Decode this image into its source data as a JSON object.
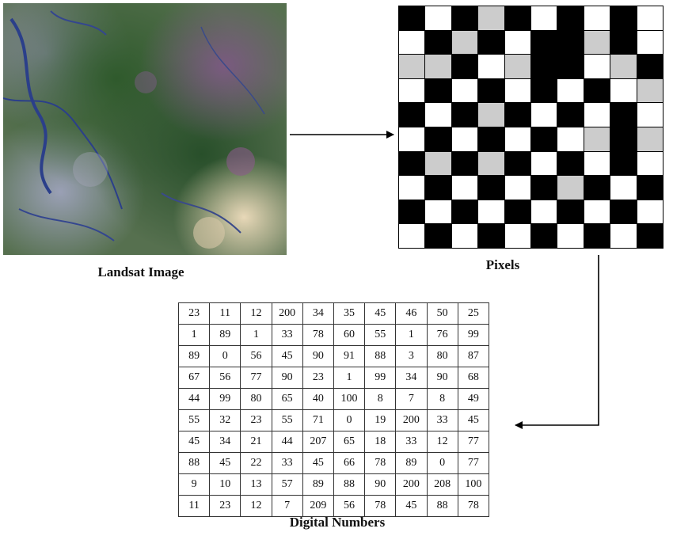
{
  "captions": {
    "landsat": "Landsat Image",
    "pixels": "Pixels",
    "digital_numbers": "Digital Numbers"
  },
  "pixel_grid": [
    [
      "black",
      "white",
      "black",
      "gray",
      "black",
      "white",
      "black",
      "white",
      "black",
      "white"
    ],
    [
      "white",
      "black",
      "gray",
      "black",
      "white",
      "black",
      "black",
      "gray",
      "black",
      "white"
    ],
    [
      "gray",
      "gray",
      "black",
      "white",
      "gray",
      "black",
      "black",
      "white",
      "gray",
      "black"
    ],
    [
      "white",
      "black",
      "white",
      "black",
      "white",
      "black",
      "white",
      "black",
      "white",
      "gray"
    ],
    [
      "black",
      "white",
      "black",
      "gray",
      "black",
      "white",
      "black",
      "white",
      "black",
      "white"
    ],
    [
      "white",
      "black",
      "white",
      "black",
      "white",
      "black",
      "white",
      "gray",
      "black",
      "gray"
    ],
    [
      "black",
      "gray",
      "black",
      "gray",
      "black",
      "white",
      "black",
      "white",
      "black",
      "white"
    ],
    [
      "white",
      "black",
      "white",
      "black",
      "white",
      "black",
      "gray",
      "black",
      "white",
      "black"
    ],
    [
      "black",
      "white",
      "black",
      "white",
      "black",
      "white",
      "black",
      "white",
      "black",
      "white"
    ],
    [
      "white",
      "black",
      "white",
      "black",
      "white",
      "black",
      "white",
      "black",
      "white",
      "black"
    ]
  ],
  "digital_numbers": [
    [
      "23",
      "11",
      "12",
      "200",
      "34",
      "35",
      "45",
      "46",
      "50",
      "25"
    ],
    [
      "1",
      "89",
      "1",
      "33",
      "78",
      "60",
      "55",
      "1",
      "76",
      "99"
    ],
    [
      "89",
      "0",
      "56",
      "45",
      "90",
      "91",
      "88",
      "3",
      "80",
      "87"
    ],
    [
      "67",
      "56",
      "77",
      "90",
      "23",
      "1",
      "99",
      "34",
      "90",
      "68"
    ],
    [
      "44",
      "99",
      "80",
      "65",
      "40",
      "100",
      "8",
      "7",
      "8",
      "49"
    ],
    [
      "55",
      "32",
      "23",
      "55",
      "71",
      "0",
      "19",
      "200",
      "33",
      "45"
    ],
    [
      "45",
      "34",
      "21",
      "44",
      "207",
      "65",
      "18",
      "33",
      "12",
      "77"
    ],
    [
      "88",
      "45",
      "22",
      "33",
      "45",
      "66",
      "78",
      "89",
      "0",
      "77"
    ],
    [
      "9",
      "10",
      "13",
      "57",
      "89",
      "88",
      "90",
      "200",
      "208",
      "100"
    ],
    [
      "11",
      "23",
      "12",
      "7",
      "209",
      "56",
      "78",
      "45",
      "88",
      "78"
    ]
  ],
  "colors": {
    "pixel_black": "#000000",
    "pixel_white": "#ffffff",
    "pixel_gray": "#cccccc"
  }
}
